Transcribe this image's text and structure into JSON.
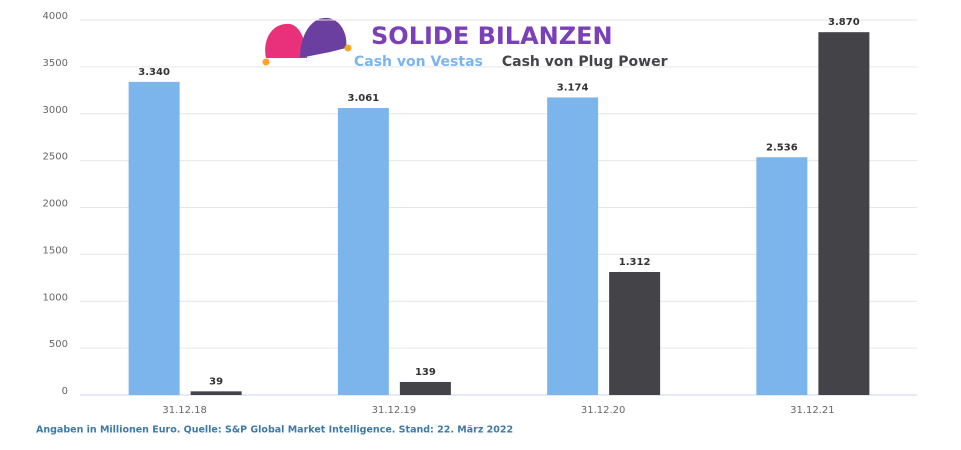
{
  "chart_data": {
    "type": "bar",
    "title": "SOLIDE BILANZEN",
    "footnote": "Angaben in Millionen Euro. Quelle:  S&P Global Market Intelligence. Stand: 22. März 2022",
    "categories": [
      "31.12.18",
      "31.12.19",
      "31.12.20",
      "31.12.21"
    ],
    "series": [
      {
        "name": "Cash von Vestas",
        "color": "#7cb5ec",
        "values": [
          3340,
          3061,
          3174,
          2536
        ],
        "value_labels": [
          "3.340",
          "3.061",
          "3.174",
          "2.536"
        ]
      },
      {
        "name": "Cash von Plug Power",
        "color": "#434348",
        "values": [
          39,
          139,
          1312,
          3870
        ],
        "value_labels": [
          "39",
          "139",
          "1.312",
          "3.870"
        ]
      }
    ],
    "ylim": [
      0,
      4000
    ],
    "yticks": [
      0,
      500,
      1000,
      1500,
      2000,
      2500,
      3000,
      3500,
      4000
    ],
    "grid": true
  }
}
